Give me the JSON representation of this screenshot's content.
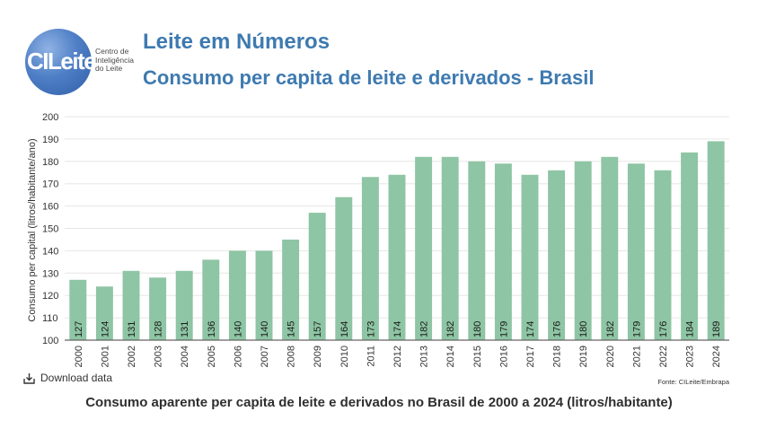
{
  "logo": {
    "mark_text": "CILeite",
    "tagline": [
      "Centro de",
      "Inteligência",
      "do Leite"
    ]
  },
  "header": {
    "title": "Leite em Números",
    "subtitle": "Consumo per capita de leite e derivados - Brasil"
  },
  "footer": {
    "download_label": "Download data",
    "source": "Fonte: CILeite/Embrapa",
    "caption": "Consumo aparente per capita de leite e derivados no Brasil de 2000 a 2024 (litros/habitante)"
  },
  "colors": {
    "bar": "#8ec5a4",
    "title": "#3e7ab0",
    "grid": "#e6e6e6"
  },
  "chart_data": {
    "type": "bar",
    "title": "Consumo per capita de leite e derivados - Brasil",
    "xlabel": "",
    "ylabel": "Consumo per capital (litros/habitante/ano)",
    "ylim": [
      100,
      200
    ],
    "yticks": [
      100,
      110,
      120,
      130,
      140,
      150,
      160,
      170,
      180,
      190,
      200
    ],
    "grid": true,
    "categories": [
      "2000",
      "2001",
      "2002",
      "2003",
      "2004",
      "2005",
      "2006",
      "2007",
      "2008",
      "2009",
      "2010",
      "2011",
      "2012",
      "2013",
      "2014",
      "2015",
      "2016",
      "2017",
      "2018",
      "2019",
      "2020",
      "2021",
      "2022",
      "2023",
      "2024"
    ],
    "values": [
      127,
      124,
      131,
      128,
      131,
      136,
      140,
      140,
      145,
      157,
      164,
      173,
      174,
      182,
      182,
      180,
      179,
      174,
      176,
      180,
      182,
      179,
      176,
      184,
      189
    ]
  }
}
